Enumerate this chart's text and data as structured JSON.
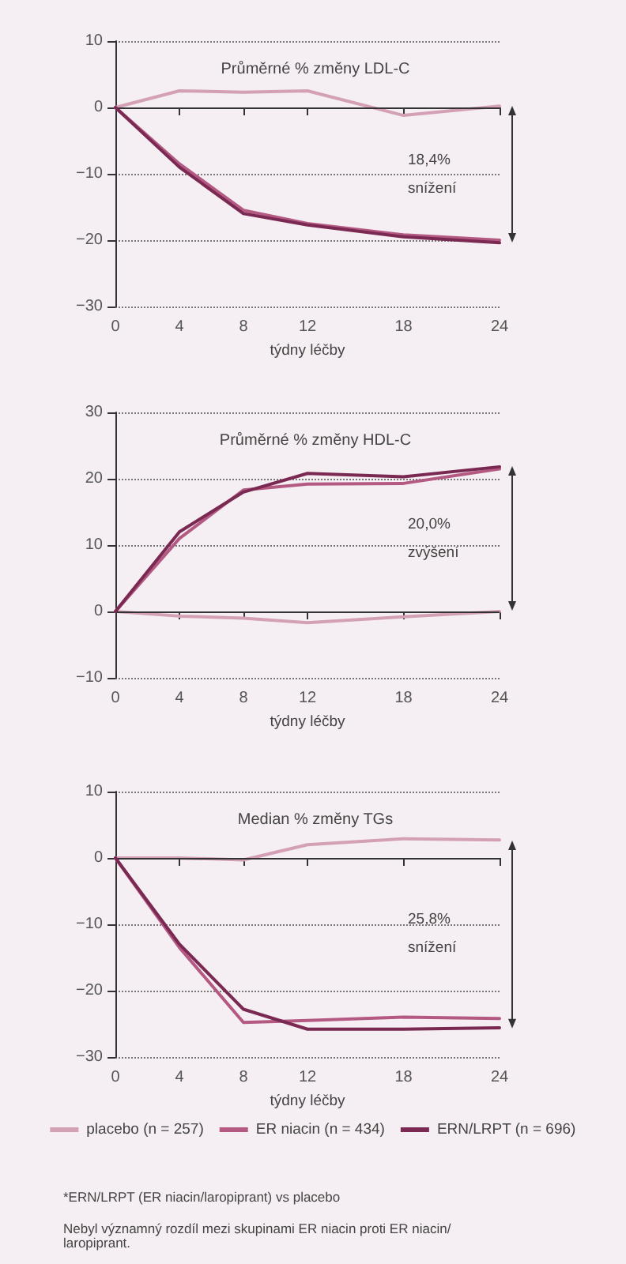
{
  "chart_data": [
    {
      "type": "line",
      "title": "Průměrné % změny LDL-C",
      "xlabel": "týdny léčby",
      "x": [
        0,
        4,
        8,
        12,
        18,
        24
      ],
      "xlim": [
        0,
        24
      ],
      "xticks": [
        0,
        4,
        8,
        12,
        18,
        24
      ],
      "ylim": [
        -30,
        10
      ],
      "yticks": [
        -30,
        -20,
        -10,
        0,
        10
      ],
      "grid": "y",
      "legend": false,
      "marker": "none",
      "ref_lines": [
        {
          "axis": "y",
          "value": 0,
          "color": "#333333"
        }
      ],
      "annotations": [
        "18,4% snížení"
      ],
      "series": [
        {
          "color": "#d4a0b6",
          "values": [
            0,
            2.5,
            2.3,
            2.5,
            -1.2,
            0.2
          ]
        },
        {
          "color": "#b45a82",
          "values": [
            0,
            -8.5,
            -15.5,
            -17.5,
            -19.2,
            -20
          ]
        },
        {
          "color": "#7a2a52",
          "values": [
            0,
            -9,
            -16,
            -17.7,
            -19.5,
            -20.4
          ]
        }
      ]
    },
    {
      "type": "line",
      "title": "Průměrné % změny HDL-C",
      "xlabel": "týdny léčby",
      "x": [
        0,
        4,
        8,
        12,
        18,
        24
      ],
      "xlim": [
        0,
        24
      ],
      "xticks": [
        0,
        4,
        8,
        12,
        18,
        24
      ],
      "ylim": [
        -10,
        30
      ],
      "yticks": [
        -10,
        0,
        10,
        20,
        30
      ],
      "grid": "y",
      "legend": false,
      "marker": "none",
      "ref_lines": [
        {
          "axis": "y",
          "value": 0,
          "color": "#333333"
        }
      ],
      "annotations": [
        "20,0% zvýšení"
      ],
      "series": [
        {
          "color": "#d4a0b6",
          "values": [
            0,
            -0.7,
            -1,
            -1.7,
            -0.8,
            0
          ]
        },
        {
          "color": "#b45a82",
          "values": [
            0,
            11,
            18.3,
            19.2,
            19.3,
            21.5
          ]
        },
        {
          "color": "#7a2a52",
          "values": [
            0,
            12,
            18,
            20.8,
            20.3,
            21.8
          ]
        }
      ]
    },
    {
      "type": "line",
      "title": "Median % změny TGs",
      "xlabel": "týdny léčby",
      "x": [
        0,
        4,
        8,
        12,
        18,
        24
      ],
      "xlim": [
        0,
        24
      ],
      "xticks": [
        0,
        4,
        8,
        12,
        18,
        24
      ],
      "ylim": [
        -30,
        10
      ],
      "yticks": [
        -30,
        -20,
        -10,
        0,
        10
      ],
      "grid": "y",
      "legend": "bottom",
      "marker": "none",
      "ref_lines": [
        {
          "axis": "y",
          "value": 0,
          "color": "#333333"
        }
      ],
      "annotations": [
        "25,8% snížení",
        "*ERN/LRPT (ER niacin/laropiprant) vs placebo",
        "Nebyl významný rozdíl mezi skupinami ER niacin proti ER niacin/laropiprant."
      ],
      "series": [
        {
          "name": "placebo (n = 257)",
          "color": "#d4a0b6",
          "values": [
            0,
            0,
            -0.3,
            2,
            2.9,
            2.7
          ]
        },
        {
          "name": "ER niacin (n = 434)",
          "color": "#b45a82",
          "values": [
            0,
            -13.5,
            -24.8,
            -24.5,
            -24,
            -24.2
          ]
        },
        {
          "name": "ERN/LRPT (n = 696)",
          "color": "#7a2a52",
          "values": [
            0,
            -13,
            -22.8,
            -25.8,
            -25.8,
            -25.6
          ]
        }
      ]
    }
  ]
}
